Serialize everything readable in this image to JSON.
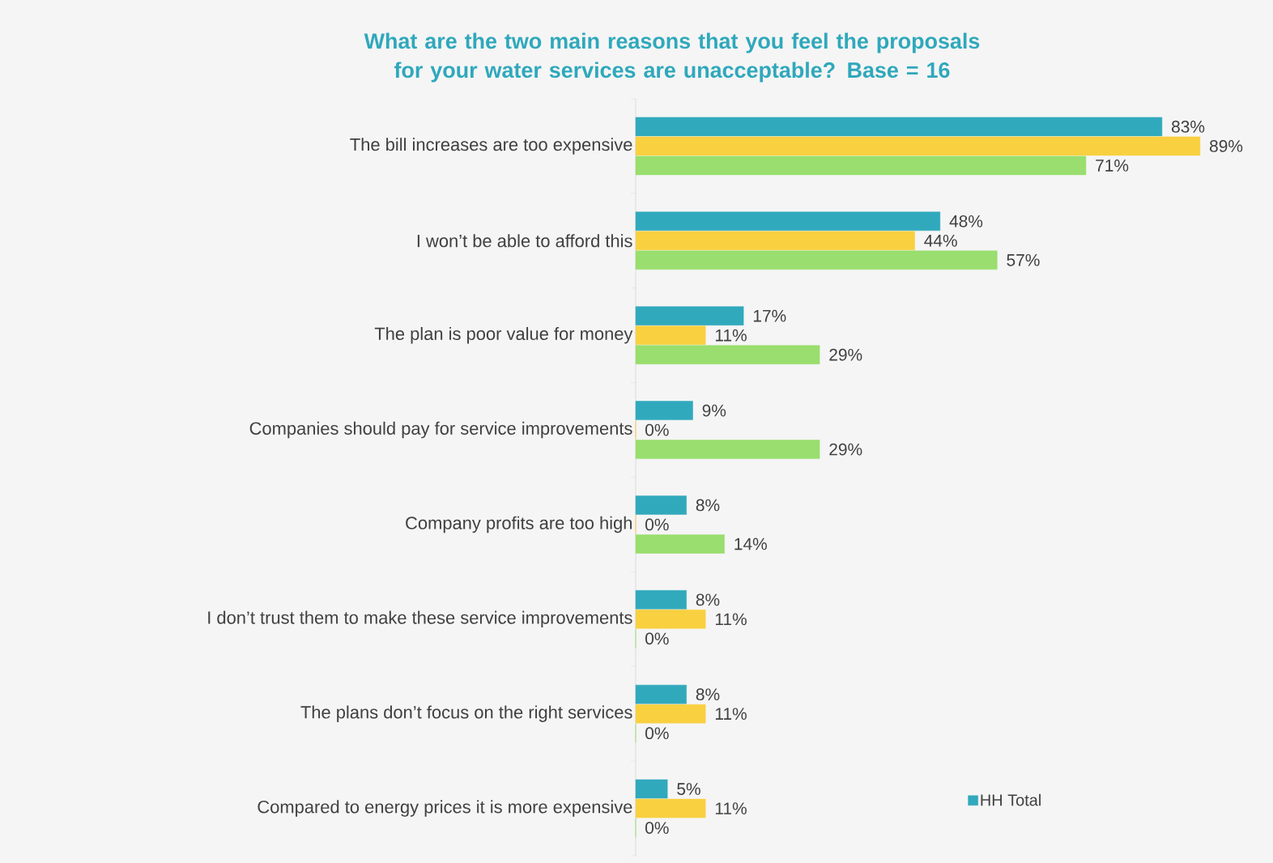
{
  "chart_data": {
    "type": "bar",
    "orientation": "horizontal",
    "title": "What are the two main reasons that you feel the proposals for your water services are unacceptable? Base = 16",
    "categories": [
      "The bill increases are too expensive",
      "I won’t be able to afford this",
      "The plan is poor value for money",
      "Companies should pay for service improvements",
      "Company profits are too high",
      "I don’t trust them to make these service improvements",
      "The plans don’t focus on the right services",
      "Compared to energy prices it is more expensive"
    ],
    "series": [
      {
        "name": "HH Total",
        "color": "#31a9bd",
        "values": [
          83,
          48,
          17,
          9,
          8,
          8,
          8,
          5
        ],
        "value_labels": [
          "83%",
          "48%",
          "17%",
          "9%",
          "8%",
          "8%",
          "8%",
          "5%"
        ]
      },
      {
        "color": "#f9d040",
        "values": [
          89,
          44,
          11,
          0,
          0,
          11,
          11,
          11
        ],
        "value_labels": [
          "89%",
          "44%",
          "11%",
          "0%",
          "0%",
          "11%",
          "11%",
          "11%"
        ]
      },
      {
        "color": "#99de6e",
        "values": [
          71,
          57,
          29,
          29,
          14,
          0,
          0,
          0
        ],
        "value_labels": [
          "71%",
          "57%",
          "29%",
          "29%",
          "14%",
          "0%",
          "0%",
          "0%"
        ]
      }
    ],
    "xlim": [
      0,
      100
    ],
    "tick_labels": "y",
    "legend": "bottom right"
  }
}
